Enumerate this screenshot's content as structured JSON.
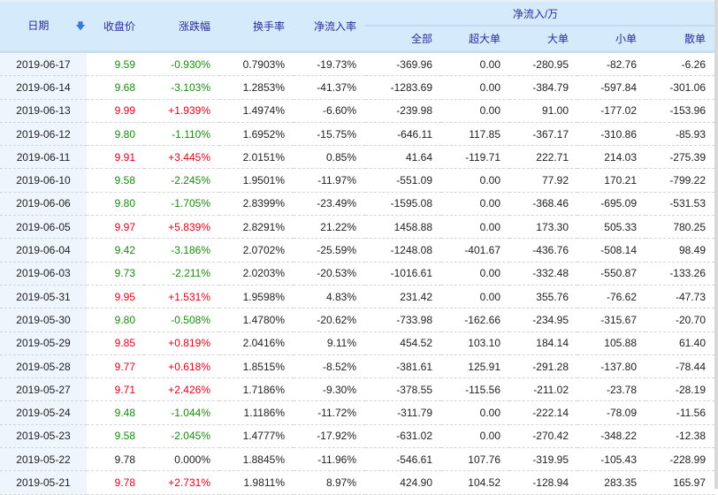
{
  "headers": {
    "date": "日期",
    "sort_icon": "arrow-down-icon",
    "close": "收盘价",
    "change": "涨跌幅",
    "turnover": "换手率",
    "net_rate": "净流入率",
    "net_group": "净流入/万",
    "all": "全部",
    "super": "超大单",
    "large": "大单",
    "small": "小单",
    "retail": "散单"
  },
  "colors": {
    "up": "#e0001b",
    "down": "#1a8a12",
    "header_bg": "#d5ebfb",
    "header_text": "#2b2b9a"
  },
  "rows": [
    [
      "2019-06-17",
      "9.59",
      "-0.930%",
      "0.7903%",
      "-19.73%",
      "-369.96",
      "0.00",
      "-280.95",
      "-82.76",
      "-6.26"
    ],
    [
      "2019-06-14",
      "9.68",
      "-3.103%",
      "1.2853%",
      "-41.37%",
      "-1283.69",
      "0.00",
      "-384.79",
      "-597.84",
      "-301.06"
    ],
    [
      "2019-06-13",
      "9.99",
      "+1.939%",
      "1.4974%",
      "-6.60%",
      "-239.98",
      "0.00",
      "91.00",
      "-177.02",
      "-153.96"
    ],
    [
      "2019-06-12",
      "9.80",
      "-1.110%",
      "1.6952%",
      "-15.75%",
      "-646.11",
      "117.85",
      "-367.17",
      "-310.86",
      "-85.93"
    ],
    [
      "2019-06-11",
      "9.91",
      "+3.445%",
      "2.0151%",
      "0.85%",
      "41.64",
      "-119.71",
      "222.71",
      "214.03",
      "-275.39"
    ],
    [
      "2019-06-10",
      "9.58",
      "-2.245%",
      "1.9501%",
      "-11.97%",
      "-551.09",
      "0.00",
      "77.92",
      "170.21",
      "-799.22"
    ],
    [
      "2019-06-06",
      "9.80",
      "-1.705%",
      "2.8399%",
      "-23.49%",
      "-1595.08",
      "0.00",
      "-368.46",
      "-695.09",
      "-531.53"
    ],
    [
      "2019-06-05",
      "9.97",
      "+5.839%",
      "2.8291%",
      "21.22%",
      "1458.88",
      "0.00",
      "173.30",
      "505.33",
      "780.25"
    ],
    [
      "2019-06-04",
      "9.42",
      "-3.186%",
      "2.0702%",
      "-25.59%",
      "-1248.08",
      "-401.67",
      "-436.76",
      "-508.14",
      "98.49"
    ],
    [
      "2019-06-03",
      "9.73",
      "-2.211%",
      "2.0203%",
      "-20.53%",
      "-1016.61",
      "0.00",
      "-332.48",
      "-550.87",
      "-133.26"
    ],
    [
      "2019-05-31",
      "9.95",
      "+1.531%",
      "1.9598%",
      "4.83%",
      "231.42",
      "0.00",
      "355.76",
      "-76.62",
      "-47.73"
    ],
    [
      "2019-05-30",
      "9.80",
      "-0.508%",
      "1.4780%",
      "-20.62%",
      "-733.98",
      "-162.66",
      "-234.95",
      "-315.67",
      "-20.70"
    ],
    [
      "2019-05-29",
      "9.85",
      "+0.819%",
      "2.0416%",
      "9.11%",
      "454.52",
      "103.10",
      "184.14",
      "105.88",
      "61.40"
    ],
    [
      "2019-05-28",
      "9.77",
      "+0.618%",
      "1.8515%",
      "-8.52%",
      "-381.61",
      "125.91",
      "-291.28",
      "-137.80",
      "-78.44"
    ],
    [
      "2019-05-27",
      "9.71",
      "+2.426%",
      "1.7186%",
      "-9.30%",
      "-378.55",
      "-115.56",
      "-211.02",
      "-23.78",
      "-28.19"
    ],
    [
      "2019-05-24",
      "9.48",
      "-1.044%",
      "1.1186%",
      "-11.72%",
      "-311.79",
      "0.00",
      "-222.14",
      "-78.09",
      "-11.56"
    ],
    [
      "2019-05-23",
      "9.58",
      "-2.045%",
      "1.4777%",
      "-17.92%",
      "-631.02",
      "0.00",
      "-270.42",
      "-348.22",
      "-12.38"
    ],
    [
      "2019-05-22",
      "9.78",
      "0.000%",
      "1.8845%",
      "-11.96%",
      "-546.61",
      "107.76",
      "-319.95",
      "-105.43",
      "-228.99"
    ],
    [
      "2019-05-21",
      "9.78",
      "+2.731%",
      "1.9811%",
      "8.97%",
      "424.90",
      "104.52",
      "-128.94",
      "283.35",
      "165.97"
    ]
  ]
}
